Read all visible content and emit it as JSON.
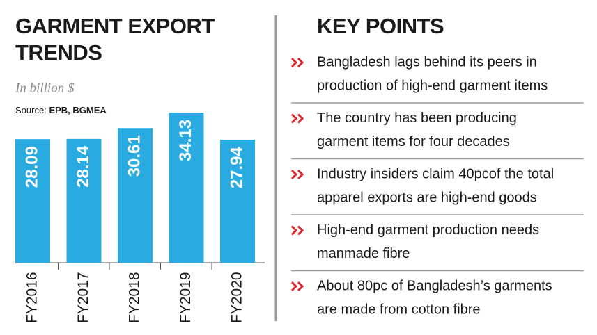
{
  "chart_data": {
    "type": "bar",
    "title_lines": [
      "GARMENT EXPORT",
      "TRENDS"
    ],
    "subtitle": "In billion $",
    "source_label": "Source:",
    "source": "EPB, BGMEA",
    "categories": [
      "FY2016",
      "FY2017",
      "FY2018",
      "FY2019",
      "FY2020"
    ],
    "values": [
      28.09,
      28.14,
      30.61,
      34.13,
      27.94
    ],
    "color": "#29abe2"
  },
  "key_points": {
    "title": "KEY POINTS",
    "items": [
      [
        "Bangladesh lags behind its peers in",
        "production of high-end garment items"
      ],
      [
        "The country has been producing",
        "garment items for four decades"
      ],
      [
        "Industry insiders claim 40pcof the total",
        "apparel exports are high-end goods"
      ],
      [
        "High-end garment production needs",
        "manmade fibre"
      ],
      [
        "About 80pc of Bangladesh’s garments",
        "are made from cotton fibre"
      ]
    ]
  }
}
